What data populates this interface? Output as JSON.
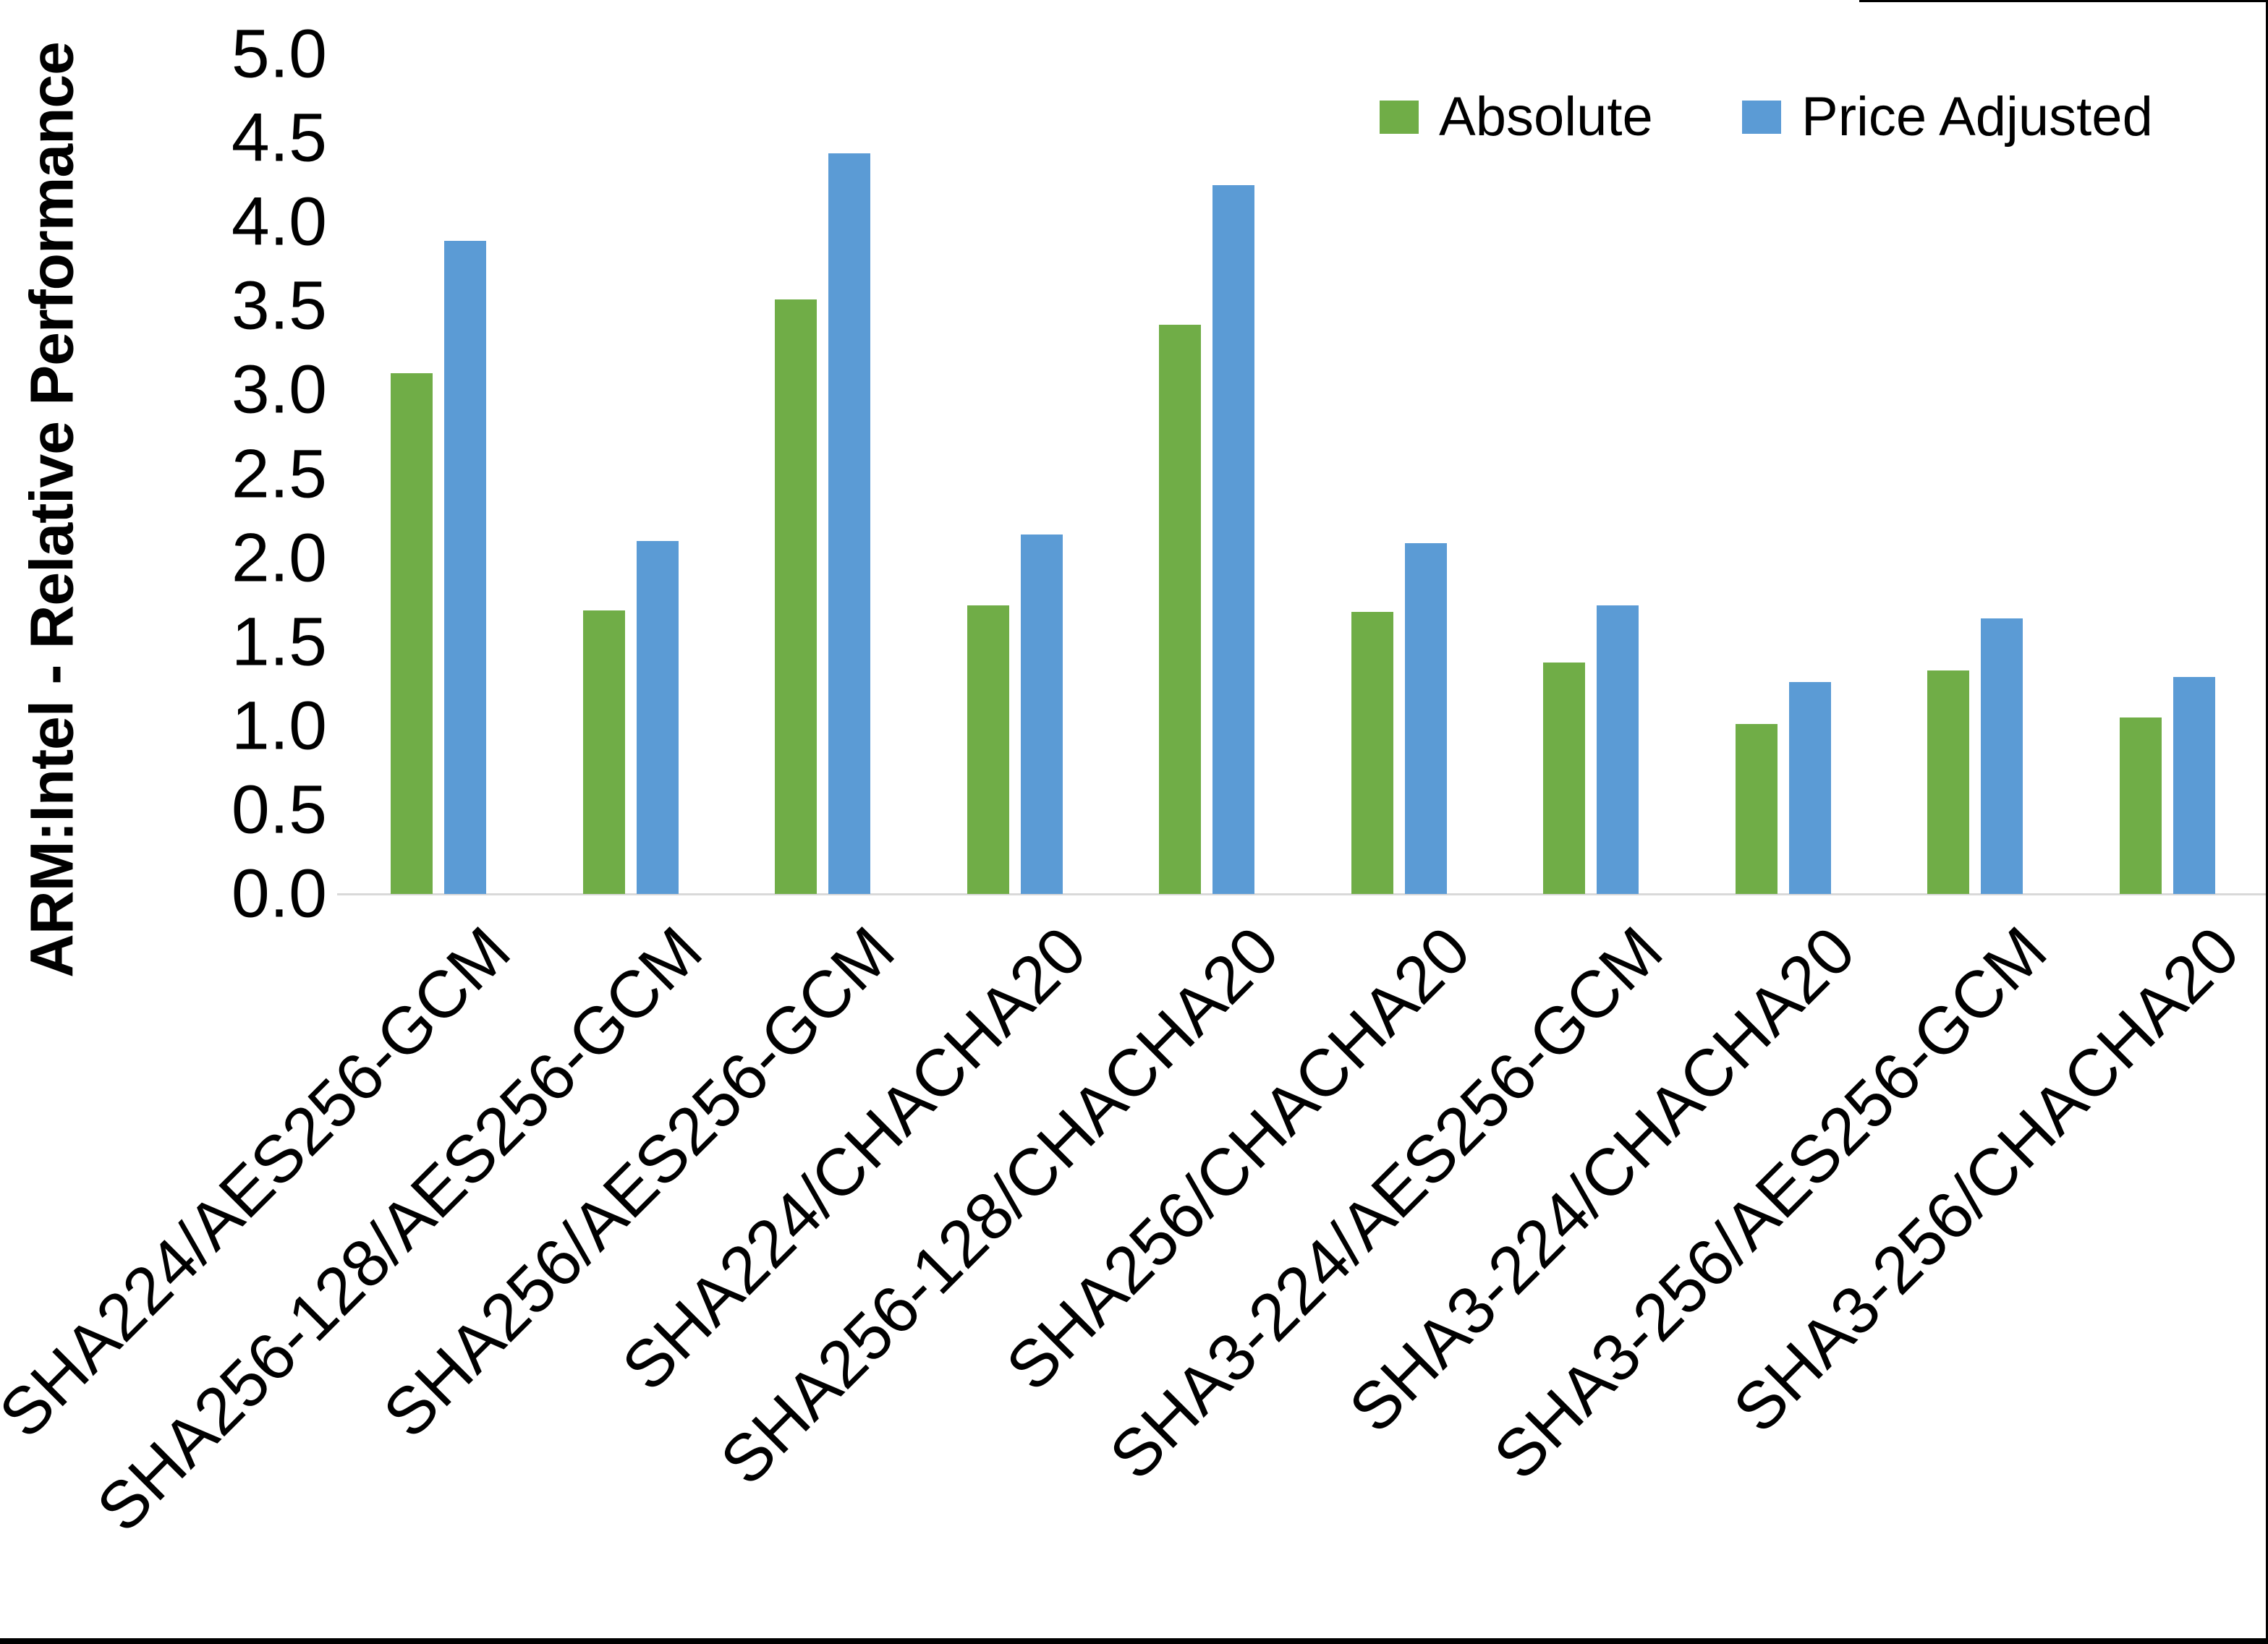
{
  "chart_data": {
    "type": "bar",
    "title": "",
    "xlabel": "",
    "ylabel": "ARM:Intel - Relative Performance",
    "ylim": [
      0,
      5
    ],
    "ytick_labels": [
      "0.0",
      "0.5",
      "1.0",
      "1.5",
      "2.0",
      "2.5",
      "3.0",
      "3.5",
      "4.0",
      "4.5",
      "5.0"
    ],
    "grid": false,
    "legend_position": "top-right",
    "categories": [
      "SHA224/AES256-GCM",
      "SHA256-128/AES256-GCM",
      "SHA256/AES256-GCM",
      "SHA224/CHACHA20",
      "SHA256-128/CHACHA20",
      "SHA256/CHACHA20",
      "SHA3-224/AES256-GCM",
      "SHA3-224/CHACHA20",
      "SHA3-256/AES256-GCM",
      "SHA3-256/CHACHA20"
    ],
    "series": [
      {
        "name": "Absolute",
        "color": "#70AD47",
        "values": [
          3.1,
          1.69,
          3.54,
          1.72,
          3.39,
          1.68,
          1.38,
          1.01,
          1.33,
          1.05
        ]
      },
      {
        "name": "Price Adjusted",
        "color": "#5B9BD5",
        "values": [
          3.89,
          2.1,
          4.41,
          2.14,
          4.22,
          2.09,
          1.72,
          1.26,
          1.64,
          1.29
        ]
      }
    ]
  },
  "colors": {
    "background": "#FFFFFF",
    "axis_line": "#D9D9D9",
    "text": "#000000",
    "frame": "#000000"
  }
}
